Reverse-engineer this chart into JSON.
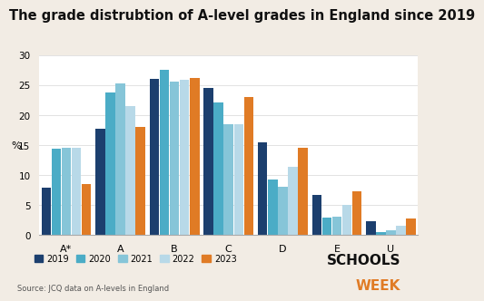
{
  "title": "The grade distrubtion of A-level grades in England since 2019",
  "ylabel": "%",
  "xlabel_source": "Source: JCQ data on A-levels in England",
  "categories": [
    "A*",
    "A",
    "B",
    "C",
    "D",
    "E",
    "U"
  ],
  "years": [
    "2019",
    "2020",
    "2021",
    "2022",
    "2023"
  ],
  "colors": [
    "#1c3f6e",
    "#4bacc6",
    "#86c5d8",
    "#b8d9e8",
    "#e07b25"
  ],
  "data": {
    "2019": [
      7.8,
      17.7,
      26.0,
      24.5,
      15.5,
      6.7,
      2.3
    ],
    "2020": [
      14.3,
      23.8,
      27.5,
      22.0,
      9.3,
      2.9,
      0.5
    ],
    "2021": [
      14.5,
      25.3,
      25.5,
      18.5,
      8.0,
      3.0,
      0.7
    ],
    "2022": [
      14.5,
      21.5,
      25.8,
      18.5,
      11.3,
      5.0,
      1.5
    ],
    "2023": [
      8.5,
      18.0,
      26.2,
      23.0,
      14.5,
      7.3,
      2.7
    ]
  },
  "ylim": [
    0,
    30
  ],
  "yticks": [
    0,
    5,
    10,
    15,
    20,
    25,
    30
  ],
  "background_color": "#f2ece4",
  "bar_background": "#ffffff",
  "grid_color": "#dddddd",
  "title_fontsize": 10.5,
  "logo_schools": "SCHOOLS",
  "logo_week": "WEEK",
  "logo_color": "#e07b25",
  "logo_dark": "#111111"
}
